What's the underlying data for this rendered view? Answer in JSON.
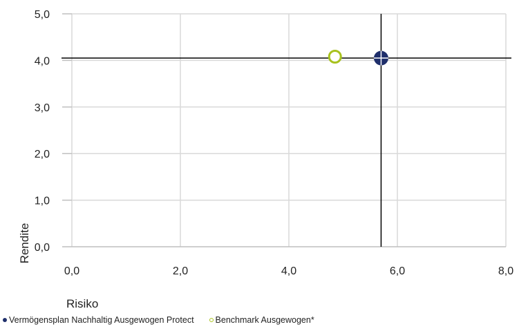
{
  "chart_data": {
    "type": "scatter",
    "xlabel": "Risiko",
    "ylabel": "Rendite",
    "xlim": [
      0,
      8
    ],
    "ylim": [
      0,
      5
    ],
    "x_ticks": [
      0,
      2,
      4,
      6,
      8
    ],
    "x_tick_labels": [
      "0,0",
      "2,0",
      "4,0",
      "6,0",
      "8,0"
    ],
    "y_ticks": [
      0,
      1,
      2,
      3,
      4,
      5
    ],
    "y_tick_labels": [
      "0,0",
      "1,0",
      "2,0",
      "3,0",
      "4,0",
      "5,0"
    ],
    "grid": true,
    "legend_position": "bottom",
    "crosshair": {
      "x": 5.7,
      "y": 4.05
    },
    "series": [
      {
        "name": "Vermögensplan Nachhaltig Ausgewogen Protect",
        "x": 5.7,
        "y": 4.05,
        "color": "#1f2f6b",
        "marker": "filled-circle"
      },
      {
        "name": "Benchmark Ausgewogen*",
        "x": 4.85,
        "y": 4.08,
        "color": "#a8c21e",
        "marker": "hollow-circle"
      }
    ]
  }
}
